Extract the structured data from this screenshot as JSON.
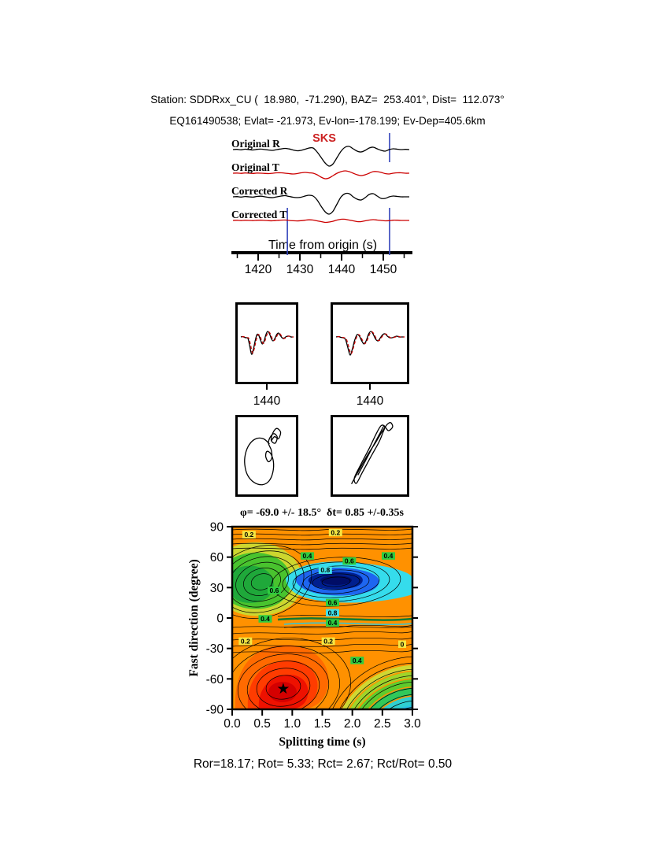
{
  "header": {
    "line1": "Station: SDDRxx_CU (  18.980,  -71.290), BAZ=  253.401°, Dist=  112.073°",
    "line2": "EQ161490538; Evlat= -21.973, Ev-lon=-178.199; Ev-Dep=405.6km"
  },
  "footer": {
    "stats": "Ror=18.17; Rot= 5.33; Rct= 2.67; Rct/Rot= 0.50"
  },
  "chart_data": [
    {
      "id": "waveforms",
      "type": "line",
      "phase_label": "SKS",
      "phase_color": "#cc2222",
      "window_color": "#3344bb",
      "xlabel": "Time from origin (s)",
      "xticks": [
        "1420",
        "1430",
        "1440",
        "1450"
      ],
      "xlim": [
        1413,
        1457
      ],
      "window_markers_s": [
        1427,
        1451.5
      ],
      "series": [
        {
          "name": "Original R",
          "color": "#000000",
          "samples": [
            0,
            0.3,
            -0.3,
            0.5,
            0,
            -0.5,
            0.3,
            0.6,
            0,
            -0.6,
            -1,
            0,
            0.8,
            1.5,
            0.8,
            -0.5,
            -1.5,
            -1,
            0.5,
            2,
            2,
            -3,
            -10,
            -17,
            -21,
            -18,
            -10,
            -2,
            3,
            4,
            1,
            -2,
            -3,
            -1,
            2,
            3,
            1,
            -1,
            -2,
            0,
            1,
            0.5,
            0,
            0.3,
            0
          ]
        },
        {
          "name": "Original T",
          "color": "#cc0000",
          "samples": [
            0,
            0.2,
            -0.2,
            0.3,
            0,
            -0.3,
            0.2,
            0,
            -0.3,
            -0.5,
            0,
            0.5,
            0.5,
            0,
            -0.5,
            -1,
            -0.5,
            0.5,
            1,
            0.5,
            0,
            -2,
            -5,
            -7,
            -6,
            -3,
            0,
            2,
            3,
            2,
            0,
            -2,
            -3,
            -2,
            0,
            2,
            2,
            1,
            -0.5,
            -1,
            0,
            0.5,
            0.5,
            0,
            0
          ]
        },
        {
          "name": "Corrected R",
          "color": "#000000",
          "samples": [
            0,
            0.3,
            -0.3,
            0.4,
            0,
            -0.4,
            0.5,
            0.8,
            0,
            -0.8,
            -1,
            0,
            1,
            1.5,
            0.5,
            -0.5,
            -1,
            -0.5,
            1,
            2,
            1,
            -4,
            -12,
            -19,
            -22,
            -18,
            -9,
            0,
            4,
            4,
            0,
            -3,
            -4,
            -1,
            3,
            4,
            1,
            -2,
            -2,
            0,
            1,
            0.5,
            0,
            0,
            0
          ]
        },
        {
          "name": "Corrected T",
          "color": "#cc0000",
          "samples": [
            0,
            0.2,
            -0.2,
            0.2,
            0,
            -0.2,
            0.2,
            0.3,
            0,
            -0.3,
            -0.4,
            0,
            0.4,
            0.5,
            0,
            -0.4,
            -0.6,
            -0.3,
            0.3,
            0.8,
            0.5,
            -0.5,
            -1.5,
            -2.5,
            -2,
            -1,
            0.5,
            1.5,
            1.5,
            0.5,
            -0.5,
            -1.5,
            -1.5,
            -0.5,
            0.5,
            1,
            0.5,
            0,
            -0.5,
            -0.3,
            0.3,
            0.3,
            0,
            0,
            0
          ]
        }
      ]
    },
    {
      "id": "component-pair",
      "type": "line",
      "panels": [
        {
          "xtick": "1440",
          "samples": [
            0,
            0.5,
            -0.5,
            -1,
            -2,
            -12,
            -22,
            -16,
            -5,
            3,
            2,
            -4,
            -9,
            -5,
            3,
            7,
            4,
            -2,
            -5,
            -2,
            3,
            5,
            2,
            -1,
            -2,
            0,
            1,
            1,
            0,
            0
          ]
        },
        {
          "xtick": "1440",
          "samples": [
            0,
            0.5,
            -0.5,
            -1,
            -3,
            -13,
            -23,
            -15,
            -4,
            3,
            1,
            -5,
            -9,
            -4,
            4,
            7,
            3,
            -3,
            -5,
            -1,
            3,
            4,
            1,
            -1,
            -1,
            0,
            1,
            0,
            0,
            0
          ]
        }
      ],
      "colors": {
        "fast": "#000000",
        "slow": "#cc0000"
      }
    },
    {
      "id": "particle-motion",
      "type": "scatter",
      "panels": [
        {
          "points": [
            [
              55,
              34
            ],
            [
              44,
              27
            ],
            [
              30,
              27
            ],
            [
              18,
              35
            ],
            [
              11,
              48
            ],
            [
              10,
              62
            ],
            [
              15,
              76
            ],
            [
              27,
              86
            ],
            [
              42,
              89
            ],
            [
              54,
              84
            ],
            [
              61,
              72
            ],
            [
              62,
              58
            ],
            [
              57,
              47
            ],
            [
              50,
              44
            ],
            [
              48,
              51
            ],
            [
              53,
              58
            ],
            [
              59,
              53
            ],
            [
              58,
              42
            ],
            [
              53,
              33
            ],
            [
              56,
              25
            ],
            [
              63,
              20
            ],
            [
              69,
              25
            ],
            [
              65,
              33
            ],
            [
              58,
              29
            ],
            [
              61,
              19
            ],
            [
              68,
              13
            ],
            [
              75,
              18
            ],
            [
              71,
              27
            ],
            [
              64,
              24
            ],
            [
              58,
              30
            ]
          ]
        },
        {
          "points": [
            [
              24,
              88
            ],
            [
              33,
              72
            ],
            [
              46,
              50
            ],
            [
              58,
              32
            ],
            [
              66,
              19
            ],
            [
              71,
              11
            ],
            [
              66,
              9
            ],
            [
              59,
              20
            ],
            [
              49,
              40
            ],
            [
              37,
              62
            ],
            [
              28,
              80
            ],
            [
              31,
              87
            ],
            [
              39,
              73
            ],
            [
              52,
              50
            ],
            [
              63,
              31
            ],
            [
              69,
              17
            ],
            [
              73,
              9
            ],
            [
              79,
              5
            ],
            [
              82,
              11
            ],
            [
              76,
              16
            ],
            [
              70,
              10
            ],
            [
              65,
              18
            ],
            [
              55,
              36
            ],
            [
              43,
              58
            ],
            [
              33,
              76
            ]
          ]
        }
      ]
    },
    {
      "id": "error-surface",
      "type": "contour",
      "title": "φ= -69.0 +/- 18.5°  δt= 0.85 +/-0.35s",
      "xlabel": "Splitting time (s)",
      "ylabel": "Fast direction (degree)",
      "xlim": [
        0,
        3
      ],
      "ylim": [
        -90,
        90
      ],
      "xticks": [
        "0.0",
        "0.5",
        "1.0",
        "1.5",
        "2.0",
        "2.5",
        "3.0"
      ],
      "yticks": [
        "90",
        "60",
        "30",
        "0",
        "-30",
        "-60",
        "-90"
      ],
      "levels": [
        0.2,
        0.4,
        0.6,
        0.8
      ],
      "best": {
        "phi_deg": -69.0,
        "phi_err_deg": 18.5,
        "dt_s": 0.85,
        "dt_err_s": 0.35
      },
      "star": {
        "dt_s": 0.85,
        "phi_deg": -69,
        "symbol": "★"
      },
      "labels": [
        {
          "dt": 0.28,
          "phi": 82,
          "text": "0.2",
          "bg": "#f5e642"
        },
        {
          "dt": 1.72,
          "phi": 84,
          "text": "0.2",
          "bg": "#f5e642"
        },
        {
          "dt": 1.25,
          "phi": 61,
          "text": "0.4",
          "bg": "#2ecc40"
        },
        {
          "dt": 1.95,
          "phi": 56,
          "text": "0.6",
          "bg": "#2ecc40"
        },
        {
          "dt": 1.55,
          "phi": 47,
          "text": "0.8",
          "bg": "#40e0e8"
        },
        {
          "dt": 2.6,
          "phi": 61,
          "text": "0.4",
          "bg": "#2ecc40"
        },
        {
          "dt": 0.7,
          "phi": 27,
          "text": "0.6",
          "bg": "#2ecc40"
        },
        {
          "dt": 0.55,
          "phi": -1,
          "text": "0.4",
          "bg": "#2ecc40"
        },
        {
          "dt": 1.67,
          "phi": 15,
          "text": "0.6",
          "bg": "#2ecc40"
        },
        {
          "dt": 1.67,
          "phi": 5,
          "text": "0.8",
          "bg": "#40e0e8"
        },
        {
          "dt": 1.67,
          "phi": -5,
          "text": "0.4",
          "bg": "#2ecc40"
        },
        {
          "dt": 0.22,
          "phi": -23,
          "text": "0.2",
          "bg": "#f5e642"
        },
        {
          "dt": 1.6,
          "phi": -23,
          "text": "0.2",
          "bg": "#f5e642"
        },
        {
          "dt": 2.83,
          "phi": -26,
          "text": "0",
          "bg": "#f5e642"
        },
        {
          "dt": 2.08,
          "phi": -42,
          "text": "0.4",
          "bg": "#2ecc40"
        }
      ]
    }
  ]
}
